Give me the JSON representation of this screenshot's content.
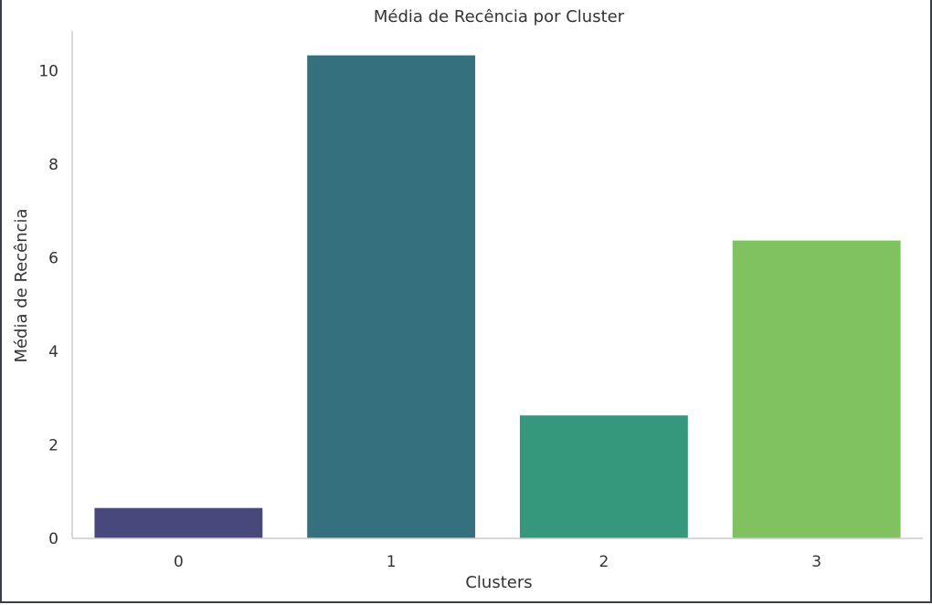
{
  "chart_data": {
    "type": "bar",
    "title": "Média de Recência por Cluster",
    "xlabel": "Clusters",
    "ylabel": "Média de Recência",
    "categories": [
      "0",
      "1",
      "2",
      "3"
    ],
    "values": [
      0.65,
      10.33,
      2.63,
      6.37
    ],
    "colors": [
      "#48487d",
      "#35707e",
      "#35977c",
      "#80c260"
    ],
    "ylim": [
      0,
      10.85
    ],
    "yticks": [
      0,
      2,
      4,
      6,
      8,
      10
    ],
    "grid": false,
    "legend": "none"
  }
}
